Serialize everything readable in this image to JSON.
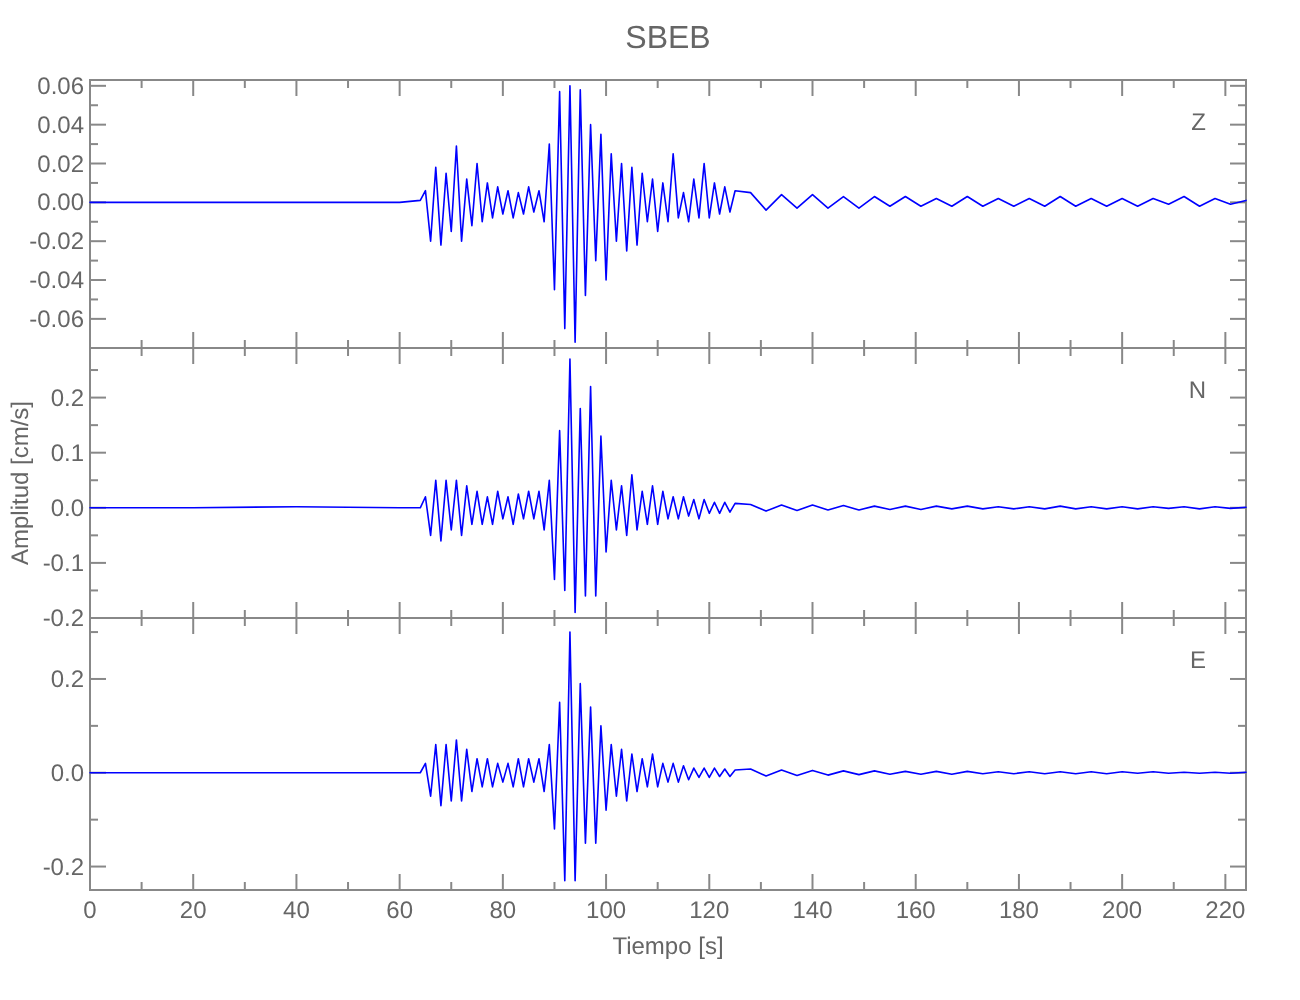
{
  "chart_data": [
    {
      "type": "line",
      "title": "SBEB",
      "annotations": [
        "Z"
      ],
      "tick_labels": "y",
      "grid": false,
      "x": [
        0,
        20,
        40,
        60,
        64,
        65,
        66,
        67,
        68,
        69,
        70,
        71,
        72,
        73,
        74,
        75,
        76,
        77,
        78,
        79,
        80,
        81,
        82,
        83,
        84,
        85,
        86,
        87,
        88,
        89,
        90,
        91,
        92,
        93,
        94,
        95,
        96,
        97,
        98,
        99,
        100,
        101,
        102,
        103,
        104,
        105,
        106,
        107,
        108,
        109,
        110,
        111,
        112,
        113,
        114,
        115,
        116,
        117,
        118,
        119,
        120,
        121,
        122,
        123,
        124,
        125,
        128,
        131,
        134,
        137,
        140,
        143,
        146,
        149,
        152,
        155,
        158,
        161,
        164,
        167,
        170,
        173,
        176,
        179,
        182,
        185,
        188,
        191,
        194,
        197,
        200,
        203,
        206,
        209,
        212,
        215,
        218,
        221,
        224
      ],
      "series": [
        {
          "color": "#0000ff",
          "values": [
            0,
            0,
            0,
            0,
            0.001,
            0.006,
            -0.02,
            0.018,
            -0.022,
            0.015,
            -0.015,
            0.029,
            -0.02,
            0.012,
            -0.012,
            0.02,
            -0.01,
            0.01,
            -0.008,
            0.008,
            -0.006,
            0.006,
            -0.008,
            0.005,
            -0.006,
            0.008,
            -0.005,
            0.006,
            -0.01,
            0.03,
            -0.045,
            0.057,
            -0.065,
            0.06,
            -0.072,
            0.058,
            -0.048,
            0.04,
            -0.03,
            0.035,
            -0.04,
            0.025,
            -0.02,
            0.02,
            -0.025,
            0.018,
            -0.022,
            0.015,
            -0.01,
            0.012,
            -0.015,
            0.01,
            -0.01,
            0.025,
            -0.008,
            0.005,
            -0.01,
            0.012,
            -0.008,
            0.02,
            -0.008,
            0.01,
            -0.006,
            0.008,
            -0.005,
            0.006,
            0.005,
            -0.004,
            0.004,
            -0.003,
            0.004,
            -0.003,
            0.003,
            -0.003,
            0.003,
            -0.002,
            0.003,
            -0.002,
            0.002,
            -0.002,
            0.003,
            -0.002,
            0.002,
            -0.002,
            0.002,
            -0.002,
            0.003,
            -0.002,
            0.002,
            -0.002,
            0.002,
            -0.002,
            0.002,
            -0.001,
            0.003,
            -0.002,
            0.002,
            -0.001,
            0.001
          ]
        }
      ],
      "xlim": [
        0,
        224
      ],
      "xticks": [
        0,
        {
          "value": 10,
          "label": null
        },
        20,
        {
          "value": 30,
          "label": null
        },
        40,
        {
          "value": 50,
          "label": null
        },
        60,
        {
          "value": 70,
          "label": null
        },
        80,
        {
          "value": 90,
          "label": null
        },
        100,
        {
          "value": 110,
          "label": null
        },
        120,
        {
          "value": 130,
          "label": null
        },
        140,
        {
          "value": 150,
          "label": null
        },
        160,
        {
          "value": 170,
          "label": null
        },
        180,
        {
          "value": 190,
          "label": null
        },
        200,
        {
          "value": 210,
          "label": null
        },
        220
      ],
      "ylim": [
        -0.075,
        0.063
      ],
      "yticks": [
        -0.06,
        {
          "value": -0.05,
          "label": null
        },
        -0.04,
        {
          "value": -0.03,
          "label": null
        },
        -0.02,
        {
          "value": -0.01,
          "label": null
        },
        {
          "value": 0,
          "label": "0.00"
        },
        {
          "value": 0.01,
          "label": null
        },
        0.02,
        {
          "value": 0.03,
          "label": null
        },
        0.04,
        {
          "value": 0.05,
          "label": null
        },
        0.06
      ]
    },
    {
      "type": "line",
      "ylabel": "Amplitud [cm/s]",
      "annotations": [
        "N"
      ],
      "tick_labels": "y",
      "grid": false,
      "x": [
        0,
        20,
        40,
        60,
        64,
        65,
        66,
        67,
        68,
        69,
        70,
        71,
        72,
        73,
        74,
        75,
        76,
        77,
        78,
        79,
        80,
        81,
        82,
        83,
        84,
        85,
        86,
        87,
        88,
        89,
        90,
        91,
        92,
        93,
        94,
        95,
        96,
        97,
        98,
        99,
        100,
        101,
        102,
        103,
        104,
        105,
        106,
        107,
        108,
        109,
        110,
        111,
        112,
        113,
        114,
        115,
        116,
        117,
        118,
        119,
        120,
        121,
        122,
        123,
        124,
        125,
        128,
        131,
        134,
        137,
        140,
        143,
        146,
        149,
        152,
        155,
        158,
        161,
        164,
        167,
        170,
        173,
        176,
        179,
        182,
        185,
        188,
        191,
        194,
        197,
        200,
        203,
        206,
        209,
        212,
        215,
        218,
        221,
        224
      ],
      "series": [
        {
          "color": "#0000ff",
          "values": [
            0,
            0,
            0.002,
            0,
            0,
            0.02,
            -0.05,
            0.05,
            -0.06,
            0.05,
            -0.04,
            0.05,
            -0.05,
            0.04,
            -0.03,
            0.03,
            -0.03,
            0.02,
            -0.03,
            0.03,
            -0.02,
            0.02,
            -0.03,
            0.025,
            -0.02,
            0.03,
            -0.02,
            0.03,
            -0.04,
            0.05,
            -0.13,
            0.14,
            -0.15,
            0.27,
            -0.19,
            0.18,
            -0.16,
            0.22,
            -0.16,
            0.13,
            -0.08,
            0.05,
            -0.04,
            0.04,
            -0.05,
            0.06,
            -0.04,
            0.03,
            -0.03,
            0.04,
            -0.03,
            0.03,
            -0.02,
            0.02,
            -0.02,
            0.02,
            -0.015,
            0.015,
            -0.02,
            0.015,
            -0.01,
            0.01,
            -0.01,
            0.01,
            -0.008,
            0.008,
            0.006,
            -0.006,
            0.005,
            -0.005,
            0.005,
            -0.004,
            0.004,
            -0.004,
            0.003,
            -0.003,
            0.003,
            -0.003,
            0.003,
            -0.002,
            0.003,
            -0.002,
            0.002,
            -0.002,
            0.002,
            -0.002,
            0.003,
            -0.002,
            0.002,
            -0.002,
            0.002,
            -0.002,
            0.002,
            -0.001,
            0.002,
            -0.002,
            0.002,
            -0.001,
            0.001
          ]
        }
      ],
      "xlim": [
        0,
        224
      ],
      "xticks": [
        0,
        {
          "value": 10,
          "label": null
        },
        20,
        {
          "value": 30,
          "label": null
        },
        40,
        {
          "value": 50,
          "label": null
        },
        60,
        {
          "value": 70,
          "label": null
        },
        80,
        {
          "value": 90,
          "label": null
        },
        100,
        {
          "value": 110,
          "label": null
        },
        120,
        {
          "value": 130,
          "label": null
        },
        140,
        {
          "value": 150,
          "label": null
        },
        160,
        {
          "value": 170,
          "label": null
        },
        180,
        {
          "value": 190,
          "label": null
        },
        200,
        {
          "value": 210,
          "label": null
        },
        220
      ],
      "ylim": [
        -0.2,
        0.29
      ],
      "yticks": [
        -0.2,
        {
          "value": -0.15,
          "label": null
        },
        -0.1,
        {
          "value": -0.05,
          "label": null
        },
        {
          "value": 0,
          "label": "0.0"
        },
        {
          "value": 0.05,
          "label": null
        },
        0.1,
        {
          "value": 0.15,
          "label": null
        },
        0.2,
        {
          "value": 0.25,
          "label": null
        }
      ]
    },
    {
      "type": "line",
      "xlabel": "Tiempo [s]",
      "annotations": [
        "E"
      ],
      "grid": false,
      "x": [
        0,
        20,
        40,
        60,
        64,
        65,
        66,
        67,
        68,
        69,
        70,
        71,
        72,
        73,
        74,
        75,
        76,
        77,
        78,
        79,
        80,
        81,
        82,
        83,
        84,
        85,
        86,
        87,
        88,
        89,
        90,
        91,
        92,
        93,
        94,
        95,
        96,
        97,
        98,
        99,
        100,
        101,
        102,
        103,
        104,
        105,
        106,
        107,
        108,
        109,
        110,
        111,
        112,
        113,
        114,
        115,
        116,
        117,
        118,
        119,
        120,
        121,
        122,
        123,
        124,
        125,
        128,
        131,
        134,
        137,
        140,
        143,
        146,
        149,
        152,
        155,
        158,
        161,
        164,
        167,
        170,
        173,
        176,
        179,
        182,
        185,
        188,
        191,
        194,
        197,
        200,
        203,
        206,
        209,
        212,
        215,
        218,
        221,
        224
      ],
      "series": [
        {
          "color": "#0000ff",
          "values": [
            0,
            0,
            0,
            0,
            0,
            0.02,
            -0.05,
            0.06,
            -0.07,
            0.06,
            -0.06,
            0.07,
            -0.06,
            0.05,
            -0.04,
            0.03,
            -0.03,
            0.03,
            -0.03,
            0.02,
            -0.02,
            0.02,
            -0.03,
            0.03,
            -0.03,
            0.03,
            -0.02,
            0.03,
            -0.04,
            0.06,
            -0.12,
            0.15,
            -0.23,
            0.3,
            -0.23,
            0.19,
            -0.15,
            0.14,
            -0.15,
            0.1,
            -0.08,
            0.06,
            -0.05,
            0.05,
            -0.06,
            0.04,
            -0.04,
            0.03,
            -0.03,
            0.04,
            -0.03,
            0.02,
            -0.02,
            0.02,
            -0.02,
            0.015,
            -0.015,
            0.01,
            -0.01,
            0.01,
            -0.01,
            0.01,
            -0.008,
            0.008,
            -0.008,
            0.006,
            0.008,
            -0.007,
            0.006,
            -0.006,
            0.005,
            -0.005,
            0.004,
            -0.004,
            0.004,
            -0.003,
            0.003,
            -0.003,
            0.003,
            -0.003,
            0.003,
            -0.002,
            0.002,
            -0.002,
            0.002,
            -0.002,
            0.002,
            -0.002,
            0.002,
            -0.002,
            0.002,
            -0.001,
            0.002,
            -0.001,
            0.001,
            -0.001,
            0.001,
            -0.001,
            0.001
          ]
        }
      ],
      "xlim": [
        0,
        224
      ],
      "xticks": [
        0,
        {
          "value": 10,
          "label": null
        },
        20,
        {
          "value": 30,
          "label": null
        },
        40,
        {
          "value": 50,
          "label": null
        },
        60,
        {
          "value": 70,
          "label": null
        },
        80,
        {
          "value": 90,
          "label": null
        },
        100,
        {
          "value": 110,
          "label": null
        },
        120,
        {
          "value": 130,
          "label": null
        },
        140,
        {
          "value": 150,
          "label": null
        },
        160,
        {
          "value": 170,
          "label": null
        },
        180,
        {
          "value": 190,
          "label": null
        },
        200,
        {
          "value": 210,
          "label": null
        },
        220
      ],
      "ylim": [
        -0.25,
        0.33
      ],
      "yticks": [
        -0.2,
        {
          "value": -0.1,
          "label": null
        },
        {
          "value": 0,
          "label": "0.0"
        },
        {
          "value": 0.1,
          "label": null
        },
        0.2,
        {
          "value": 0.3,
          "label": null
        }
      ]
    }
  ]
}
